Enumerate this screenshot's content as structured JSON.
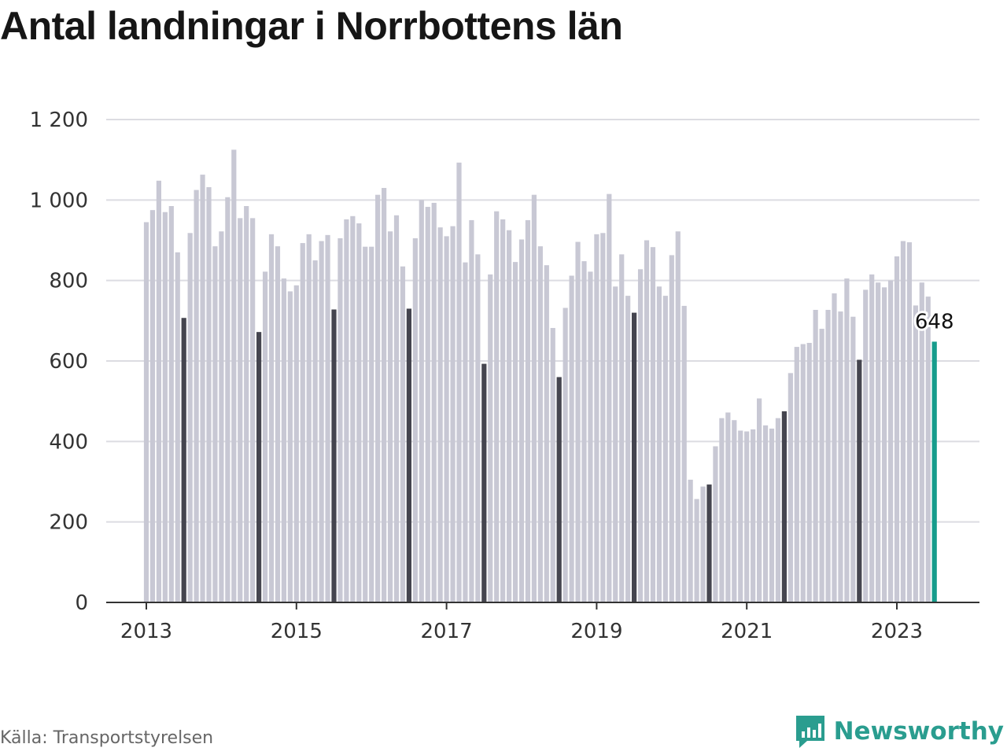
{
  "title": "Antal landningar i Norrbottens län",
  "source": "Källa: Transportstyrelsen",
  "brand": "Newsworthy",
  "colors": {
    "regular": "#c8c8d4",
    "highlight": "#45454f",
    "latest": "#169c8c",
    "grid": "#dcdce2",
    "axis": "#333333",
    "brand": "#2a9d8f"
  },
  "chart_data": {
    "type": "bar",
    "title": "Antal landningar i Norrbottens län",
    "xlabel": "",
    "ylabel": "",
    "ylim": [
      0,
      1200
    ],
    "grid": true,
    "yticks": [
      "0",
      "200",
      "400",
      "600",
      "800",
      "1 000",
      "1 200"
    ],
    "xticks": [
      "2013",
      "2015",
      "2017",
      "2019",
      "2021",
      "2023"
    ],
    "start": "2013-01",
    "highlight_month": 7,
    "values": [
      945,
      975,
      1048,
      970,
      985,
      870,
      707,
      918,
      1025,
      1063,
      1032,
      885,
      922,
      1007,
      1125,
      955,
      985,
      955,
      672,
      822,
      915,
      885,
      805,
      773,
      788,
      893,
      915,
      850,
      898,
      913,
      728,
      905,
      952,
      960,
      942,
      884,
      884,
      1013,
      1030,
      922,
      962,
      835,
      730,
      905,
      1000,
      983,
      993,
      932,
      910,
      935,
      1093,
      845,
      950,
      865,
      593,
      815,
      972,
      952,
      925,
      846,
      902,
      950,
      1013,
      885,
      838,
      682,
      560,
      732,
      812,
      896,
      848,
      822,
      915,
      918,
      1015,
      785,
      865,
      762,
      720,
      828,
      900,
      883,
      785,
      762,
      863,
      922,
      737,
      305,
      257,
      288,
      293,
      388,
      458,
      472,
      453,
      427,
      425,
      430,
      507,
      440,
      432,
      458,
      475,
      570,
      635,
      642,
      645,
      727,
      680,
      727,
      768,
      723,
      805,
      710,
      603,
      777,
      815,
      795,
      783,
      800,
      860,
      898,
      895,
      738,
      795,
      760,
      648
    ],
    "annotation": {
      "label": "648",
      "value": 648
    }
  }
}
